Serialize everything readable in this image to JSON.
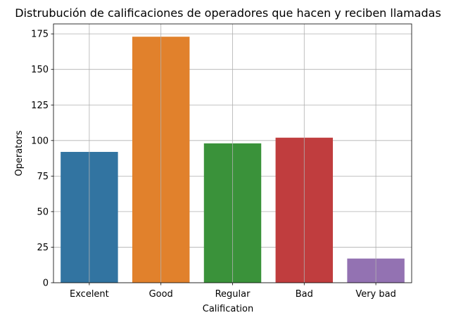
{
  "chart_data": {
    "type": "bar",
    "title": "Distrubución de calificaciones de operadores que hacen y reciben llamadas",
    "xlabel": "Calification",
    "ylabel": "Operators",
    "categories": [
      "Excelent",
      "Good",
      "Regular",
      "Bad",
      "Very bad"
    ],
    "values": [
      92,
      173,
      98,
      102,
      17
    ],
    "colors": [
      "#3274a1",
      "#e1812c",
      "#3a923a",
      "#c03d3e",
      "#9372b2"
    ],
    "yticks": [
      0,
      25,
      50,
      75,
      100,
      125,
      150,
      175
    ],
    "ylim": [
      0,
      182
    ],
    "grid": true,
    "legend": "none"
  }
}
